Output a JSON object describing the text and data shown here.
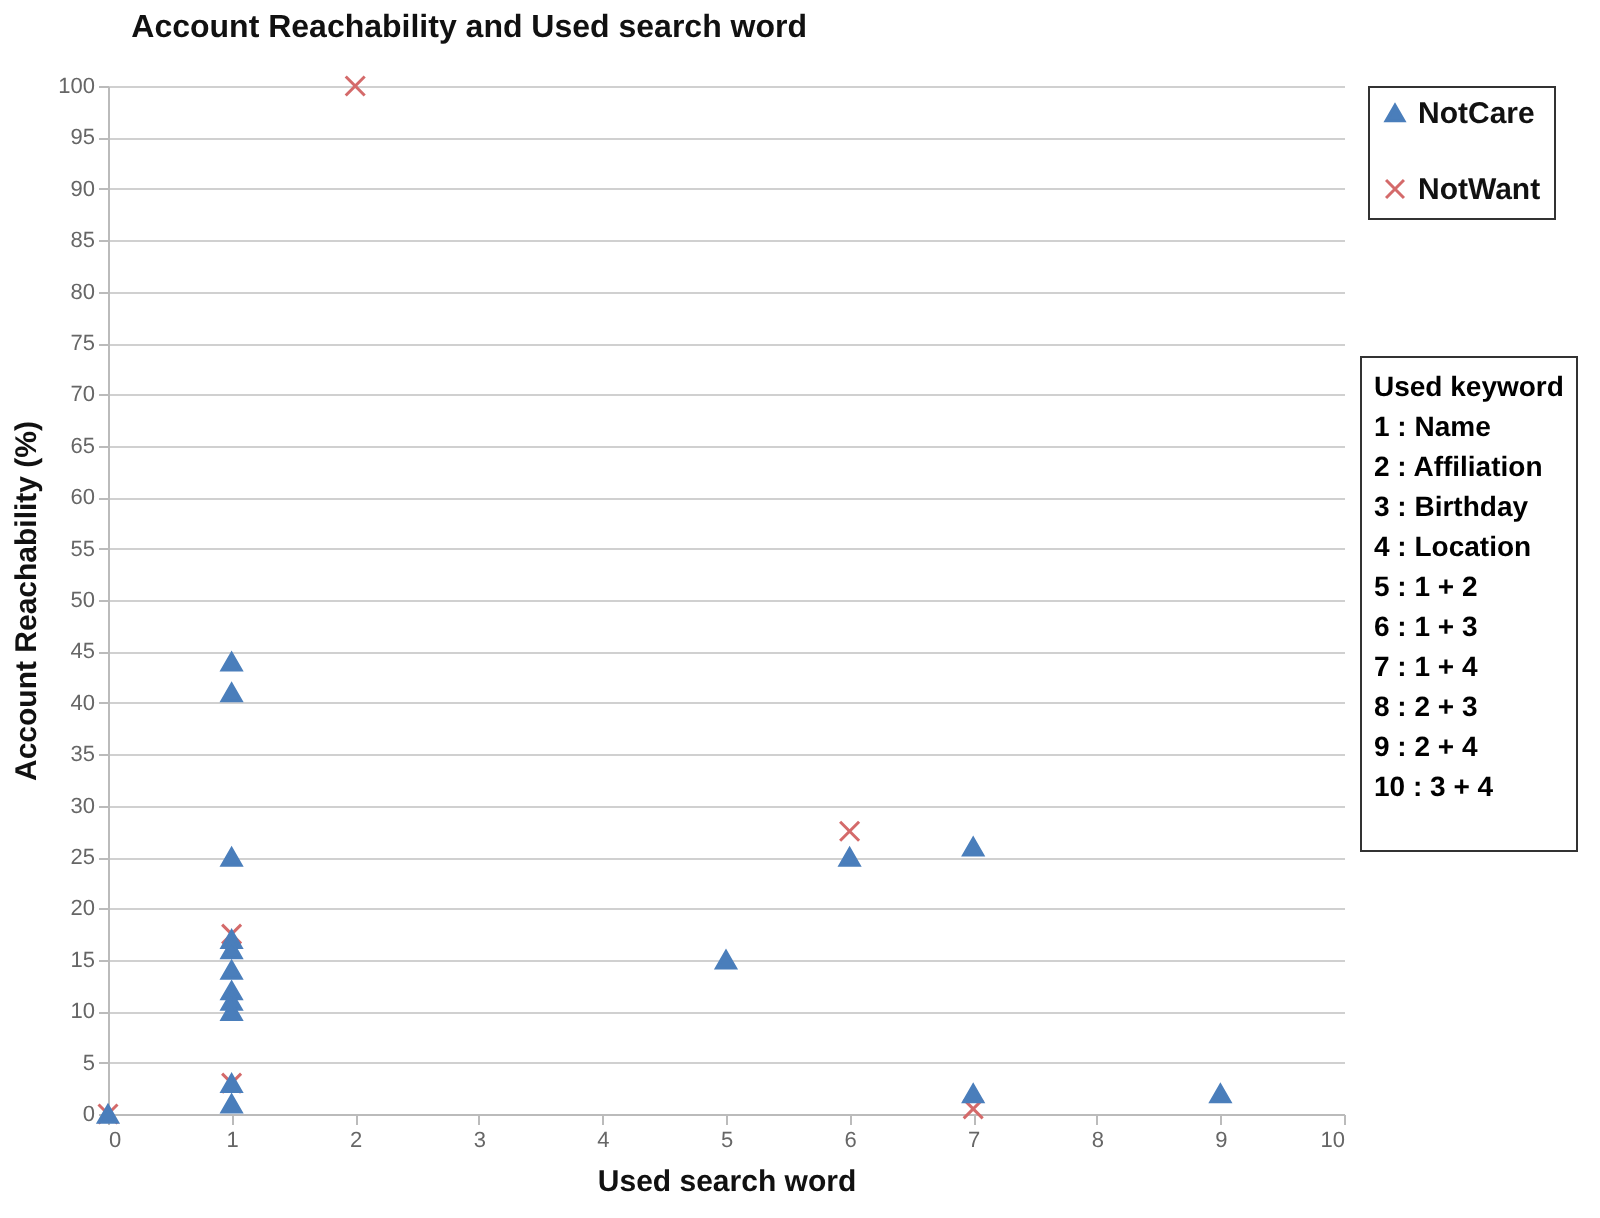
{
  "chart_data": {
    "type": "scatter",
    "title": "Account Reachability and Used search word",
    "xlabel": "Used search word",
    "ylabel": "Account Reachability (%)",
    "xlim": [
      0,
      10
    ],
    "xticks": [
      0,
      1,
      2,
      3,
      4,
      5,
      6,
      7,
      8,
      9,
      10
    ],
    "ylim": [
      0,
      100
    ],
    "yticks": [
      0,
      5,
      10,
      15,
      20,
      25,
      30,
      35,
      40,
      45,
      50,
      55,
      60,
      65,
      70,
      75,
      80,
      85,
      90,
      95,
      100
    ],
    "grid": "y",
    "legend": "top right",
    "series": [
      {
        "name": "NotCare",
        "color": "#4a7ebb",
        "marker": "triangle",
        "x": [
          0,
          1,
          1,
          1,
          1,
          1,
          1,
          1,
          1,
          1,
          1,
          1,
          5,
          6,
          7,
          7,
          9
        ],
        "values": [
          0,
          44,
          41,
          25,
          17,
          16,
          14,
          12,
          11,
          10,
          3,
          1,
          15,
          25,
          26,
          2,
          2
        ]
      },
      {
        "name": "NotWant",
        "color": "#d46a6a",
        "marker": "cross",
        "x": [
          0,
          1,
          1,
          2,
          6,
          7
        ],
        "values": [
          0,
          17.5,
          3,
          100,
          27.5,
          0.5
        ]
      }
    ],
    "annotations": [
      "Used keyword",
      "1 : Name",
      "2 : Affiliation",
      "3 : Birthday",
      "4 : Location",
      "5 : 1 + 2",
      "6 : 1 + 3",
      "7 : 1 + 4",
      "8 : 2 + 3",
      "9 : 2 + 4",
      "10 : 3 + 4"
    ]
  }
}
